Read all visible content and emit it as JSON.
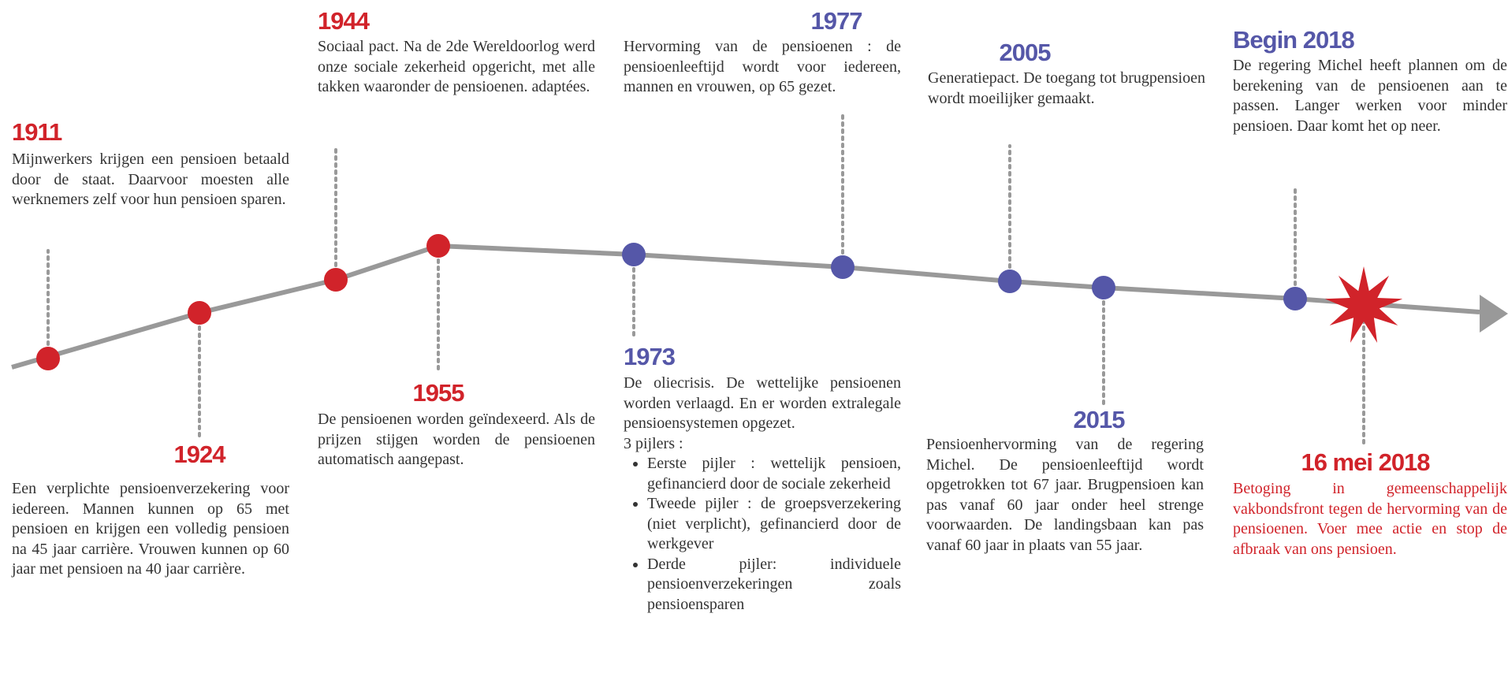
{
  "events": [
    {
      "year": "1911",
      "text": "Mijnwerkers krijgen een pensioen betaald door de staat. Daarvoor moesten alle werknemers zelf voor hun pensioen sparen."
    },
    {
      "year": "1924",
      "text": "Een verplichte pensioenverzekering voor iedereen. Mannen kunnen op 65 met pensioen en krijgen een volledig pensioen na 45 jaar carrière. Vrouwen kunnen op 60 jaar met pensioen na 40 jaar carrière."
    },
    {
      "year": "1944",
      "text": "Sociaal pact. Na de 2de Wereldoorlog werd onze sociale zekerheid opgericht, met alle takken waaronder de pensioenen. adaptées."
    },
    {
      "year": "1955",
      "text": "De pensioenen worden geïndexeerd. Als de prijzen stijgen worden de pensioenen automatisch aangepast."
    },
    {
      "year": "1973",
      "paragraphs": [
        "De oliecrisis. De wettelijke pensioenen worden verlaagd. En er worden extralegale pensioensystemen opgezet.",
        "3 pijlers :"
      ],
      "bullets": [
        "Eerste pijler : wettelijk pensioen, gefinancierd door de sociale zekerheid",
        "Tweede pijler : de groepsverzekering (niet verplicht), gefinancierd door de werkgever",
        "Derde pijler: individuele pensioenverzekeringen zoals pensioensparen"
      ]
    },
    {
      "year": "1977",
      "text": "Hervorming van de pensioenen : de pensioenleeftijd wordt voor iedereen, mannen en vrouwen, op 65 gezet."
    },
    {
      "year": "2005",
      "text": "Generatiepact. De toegang tot brugpensioen wordt moeilijker gemaakt."
    },
    {
      "year": "2015",
      "text": "Pensioenhervorming van de regering Michel. De pensioenleeftijd wordt opgetrokken tot 67 jaar. Brugpensioen kan pas vanaf 60 jaar onder heel strenge voorwaarden. De landingsbaan kan pas vanaf 60 jaar in plaats van 55 jaar."
    },
    {
      "year": "Begin 2018",
      "text": "De regering Michel heeft plannen om de berekening van de pensioenen aan te passen. Langer werken voor minder pensioen. Daar komt het op neer."
    },
    {
      "year": "16 mei 2018",
      "text": "Betoging in gemeenschappelijk vakbondsfront tegen de hervorming van de pensioenen. Voer mee actie en stop de afbraak van ons pensioen."
    }
  ]
}
